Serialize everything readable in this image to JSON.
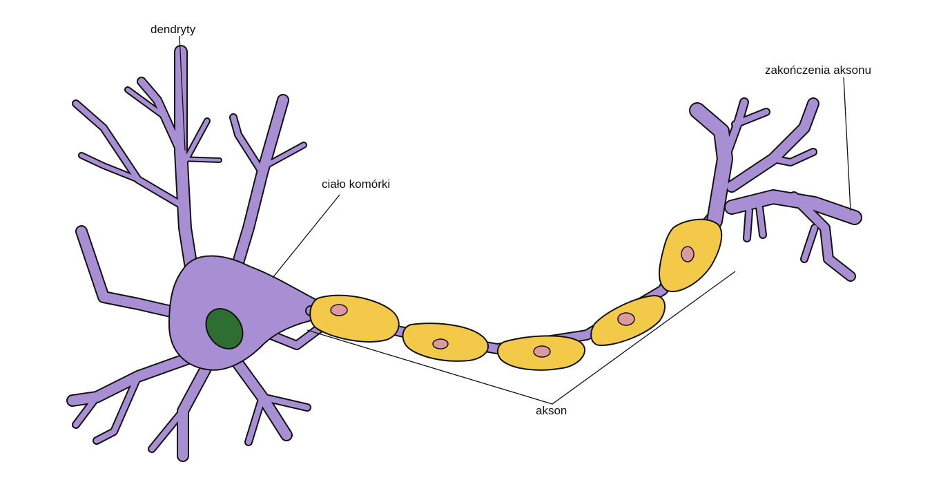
{
  "diagram": {
    "labels": {
      "dendrites": "dendryty",
      "cell_body": "ciało komórki",
      "axon": "akson",
      "axon_terminals": "zakończenia aksonu"
    },
    "colors": {
      "neuron": "#a88fd4",
      "nucleus": "#2e6e31",
      "myelin": "#f3c94a",
      "schwann_nucleus": "#dc9a9e",
      "outline": "#111111"
    }
  }
}
